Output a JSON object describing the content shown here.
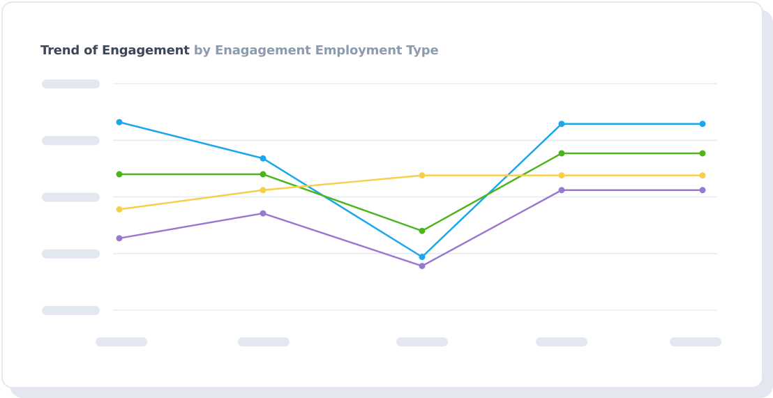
{
  "card": {
    "title": "Trend of Engagement",
    "subtitle": "by Enagagement Employment Type"
  },
  "chart_data": {
    "type": "line",
    "title": "Trend of Engagement by Enagagement Employment Type",
    "xlabel": "",
    "ylabel": "",
    "categories": [
      "",
      "",
      "",
      "",
      ""
    ],
    "ylim": [
      0,
      4
    ],
    "grid": true,
    "legend": "none",
    "tick_labels_shown_as_placeholders": true,
    "series": [
      {
        "color": "#1aa7ec",
        "values": [
          3.32,
          2.68,
          0.94,
          3.29,
          3.29
        ]
      },
      {
        "color": "#4cb51e",
        "values": [
          2.4,
          2.4,
          1.4,
          2.77,
          2.77
        ]
      },
      {
        "color": "#f8cf4a",
        "values": [
          1.78,
          2.12,
          2.38,
          2.38,
          2.38
        ]
      },
      {
        "color": "#9a78d0",
        "values": [
          1.27,
          1.71,
          0.78,
          2.12,
          2.12
        ]
      }
    ],
    "placeholder_color": "#e3e8f0",
    "gridline_color": "#e6eaf0"
  }
}
